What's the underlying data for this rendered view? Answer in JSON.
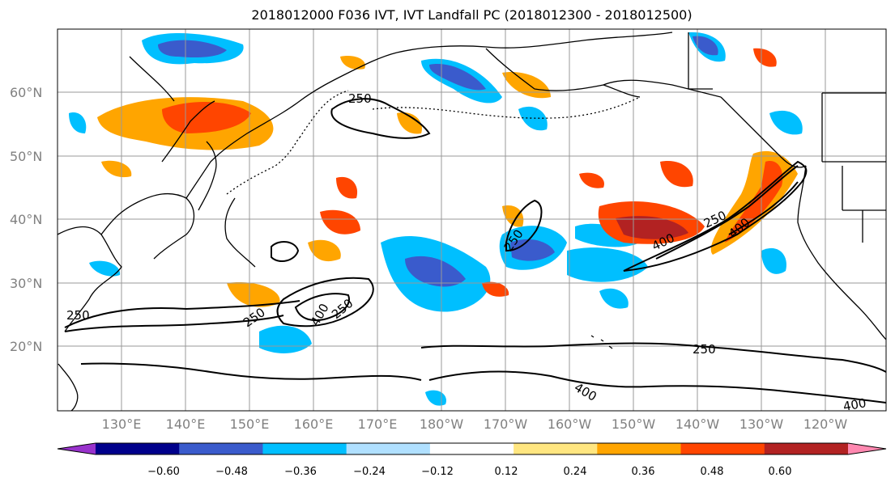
{
  "title": "2018012000 F036 IVT, IVT Landfall PC (2018012300 - 2018012500)",
  "latitude_labels": [
    "60°N",
    "50°N",
    "40°N",
    "30°N",
    "20°N"
  ],
  "longitude_labels": [
    "130°E",
    "140°E",
    "150°E",
    "160°E",
    "170°E",
    "180°W",
    "170°W",
    "160°W",
    "150°W",
    "140°W",
    "130°W",
    "120°W"
  ],
  "contour_labels": [
    "250",
    "250",
    "250",
    "250",
    "250",
    "250",
    "250",
    "400",
    "400",
    "400",
    "400",
    "400"
  ],
  "colorbar": {
    "tick_labels": [
      "−0.60",
      "−0.48",
      "−0.36",
      "−0.24",
      "−0.12",
      "0.12",
      "0.24",
      "0.36",
      "0.48",
      "0.60"
    ],
    "colors": [
      "#9932CC",
      "#00008B",
      "#3A5BCC",
      "#00BFFF",
      "#B0E0FF",
      "#FFFFFF",
      "#FFE680",
      "#FFA500",
      "#FF4500",
      "#B22222",
      "#FF88B0"
    ]
  },
  "colors": {
    "land_outline": "#000000",
    "grid": "#999999",
    "ivt_contour": "#000000"
  }
}
